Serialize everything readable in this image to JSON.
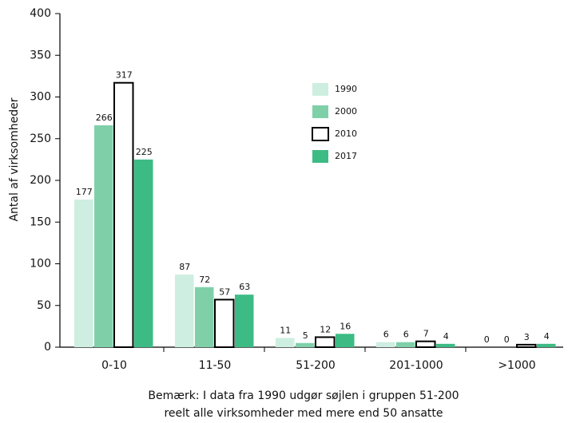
{
  "chart_data": {
    "type": "bar",
    "y_label": "Antal af virksomheder",
    "annotations": [
      "Bemærk: I data fra 1990 udgør søjlen i gruppen 51-200",
      "reelt alle virksomheder med mere end 50 ansatte"
    ],
    "categories": [
      "0-10",
      "11-50",
      "51-200",
      "201-1000",
      ">1000"
    ],
    "series": [
      {
        "name": "1990",
        "color": "#cdeee0",
        "values": [
          177,
          87,
          11,
          6,
          0
        ]
      },
      {
        "name": "2000",
        "color": "#7fd0a9",
        "values": [
          266,
          72,
          5,
          6,
          0
        ]
      },
      {
        "name": "2010",
        "color": "#ffffff",
        "values": [
          317,
          57,
          12,
          7,
          3
        ]
      },
      {
        "name": "2017",
        "color": "#3dbb85",
        "values": [
          225,
          63,
          16,
          4,
          4
        ]
      }
    ],
    "ylim": [
      0,
      400
    ],
    "yticks": [
      0,
      50,
      100,
      150,
      200,
      250,
      300,
      350,
      400
    ]
  }
}
